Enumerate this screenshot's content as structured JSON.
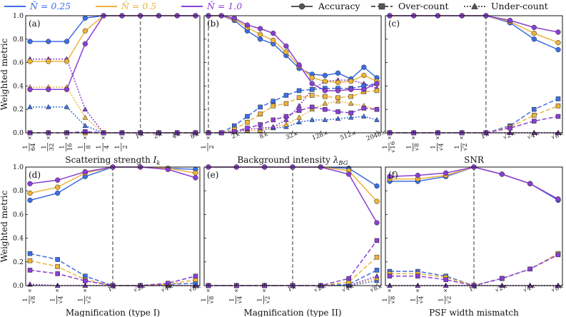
{
  "colors": {
    "n025": "#3d6ee6",
    "n05": "#edb33a",
    "n10": "#8a3fd3",
    "ref": "#707070"
  },
  "legend": {
    "series": [
      {
        "label": "N̄ = 0.25",
        "color": "#3d6ee6"
      },
      {
        "label": "N̄ = 0.5",
        "color": "#edb33a"
      },
      {
        "label": "N̄ = 1.0",
        "color": "#8a3fd3"
      }
    ],
    "metrics": [
      {
        "label": "Accuracy",
        "marker": "circle",
        "dash": "solid"
      },
      {
        "label": "Over-count",
        "marker": "square",
        "dash": "dashed"
      },
      {
        "label": "Under-count",
        "marker": "triangle",
        "dash": "dotted"
      }
    ]
  },
  "ylabel": "Weighted metric",
  "chart_data": [
    {
      "type": "line",
      "panel": "(a)",
      "xlabel": "Scattering strength I_k",
      "ylim": [
        0,
        1
      ],
      "yticks": [
        "0.0",
        "0.2",
        "0.4",
        "0.6",
        "0.8",
        "1.0"
      ],
      "xticks": [
        "1/64×",
        "1/32×",
        "1/16×",
        "1/8×",
        "1/4×",
        "1/2×",
        "1×",
        "2×",
        "4×",
        "8×"
      ],
      "reference_x": "1×",
      "accuracy": [
        [
          0.78,
          0.78,
          0.78,
          0.98,
          1,
          1,
          1,
          1,
          1,
          1
        ],
        [
          0.61,
          0.61,
          0.61,
          0.87,
          1,
          1,
          1,
          1,
          1,
          1
        ],
        [
          0.37,
          0.37,
          0.37,
          0.76,
          1,
          1,
          1,
          1,
          1,
          1
        ]
      ],
      "overcount": [
        [
          0,
          0,
          0,
          0,
          0,
          0,
          0,
          0,
          0,
          0
        ],
        [
          0,
          0,
          0,
          0,
          0,
          0,
          0,
          0,
          0,
          0
        ],
        [
          0,
          0,
          0,
          0.01,
          0,
          0,
          0,
          0,
          0,
          0
        ]
      ],
      "undercount": [
        [
          0.22,
          0.22,
          0.22,
          0.06,
          0,
          0,
          0,
          0,
          0,
          0
        ],
        [
          0.39,
          0.39,
          0.39,
          0.13,
          0,
          0,
          0,
          0,
          0,
          0
        ],
        [
          0.63,
          0.63,
          0.63,
          0.2,
          0,
          0,
          0,
          0,
          0,
          0
        ]
      ]
    },
    {
      "type": "line",
      "panel": "(b)",
      "xlabel": "Background intensity λ_BG",
      "ylim": [
        0,
        1
      ],
      "yticks": [
        "0.0",
        "0.2",
        "0.4",
        "0.6",
        "0.8",
        "1.0"
      ],
      "xticks": [
        "1/2×",
        "2×",
        "8×",
        "32×",
        "128×",
        "512×",
        "2048×"
      ],
      "reference_x": "1/2×",
      "accuracy": [
        [
          1,
          1,
          0.96,
          0.87,
          0.8,
          0.76,
          0.66,
          0.55,
          0.5,
          0.49,
          0.51,
          0.46,
          0.56,
          0.47
        ],
        [
          1,
          1,
          0.97,
          0.9,
          0.84,
          0.79,
          0.69,
          0.57,
          0.47,
          0.44,
          0.43,
          0.44,
          0.49,
          0.44
        ],
        [
          1,
          1,
          0.98,
          0.92,
          0.89,
          0.85,
          0.74,
          0.58,
          0.42,
          0.36,
          0.36,
          0.37,
          0.37,
          0.42
        ]
      ],
      "overcount": [
        [
          0,
          0,
          0.06,
          0.14,
          0.22,
          0.27,
          0.32,
          0.36,
          0.37,
          0.38,
          0.38,
          0.38,
          0.4,
          0.42
        ],
        [
          0,
          0,
          0.03,
          0.09,
          0.16,
          0.23,
          0.25,
          0.3,
          0.32,
          0.31,
          0.3,
          0.31,
          0.35,
          0.36
        ],
        [
          0,
          0,
          0.01,
          0.04,
          0.07,
          0.11,
          0.14,
          0.19,
          0.22,
          0.2,
          0.18,
          0.17,
          0.21,
          0.2
        ]
      ],
      "undercount": [
        [
          0,
          0,
          0.01,
          0.02,
          0.02,
          0.04,
          0.05,
          0.09,
          0.11,
          0.11,
          0.12,
          0.13,
          0.14,
          0.11
        ],
        [
          0,
          0,
          0.01,
          0.02,
          0.02,
          0.05,
          0.07,
          0.13,
          0.2,
          0.25,
          0.27,
          0.25,
          0.23,
          0.2
        ],
        [
          0,
          0,
          0.01,
          0.03,
          0.04,
          0.05,
          0.11,
          0.23,
          0.37,
          0.44,
          0.45,
          0.45,
          0.42,
          0.38
        ]
      ]
    },
    {
      "type": "line",
      "panel": "(c)",
      "xlabel": "SNR",
      "ylim": [
        0,
        1
      ],
      "yticks": [
        "0.0",
        "0.2",
        "0.4",
        "0.6",
        "0.8",
        "1.0"
      ],
      "xticks": [
        "1/√16×",
        "1/√8×",
        "1/√4×",
        "1/√2×",
        "1×",
        "√2×",
        "√4×",
        "√8×"
      ],
      "reference_x": "1×",
      "accuracy": [
        [
          1,
          1,
          1,
          1,
          1,
          0.94,
          0.8,
          0.71
        ],
        [
          1,
          1,
          1,
          1,
          1,
          0.95,
          0.85,
          0.77
        ],
        [
          1,
          1,
          1,
          1,
          1,
          0.96,
          0.9,
          0.86
        ]
      ],
      "overcount": [
        [
          0,
          0,
          0,
          0,
          0,
          0.06,
          0.2,
          0.29
        ],
        [
          0,
          0,
          0,
          0,
          0,
          0.05,
          0.15,
          0.23
        ],
        [
          0,
          0,
          0,
          0,
          0,
          0.04,
          0.1,
          0.14
        ]
      ],
      "undercount": [
        [
          0,
          0,
          0,
          0,
          0,
          0,
          0,
          0
        ],
        [
          0,
          0,
          0,
          0,
          0,
          0,
          0,
          0
        ],
        [
          0,
          0,
          0,
          0,
          0,
          0,
          0,
          0
        ]
      ]
    },
    {
      "type": "line",
      "panel": "(d)",
      "xlabel": "Magnification (type I)",
      "ylim": [
        0,
        1
      ],
      "yticks": [
        "0.0",
        "0.2",
        "0.4",
        "0.6",
        "0.8",
        "1.0"
      ],
      "xticks": [
        "1/√8×",
        "1/√4×",
        "1/√2×",
        "1×",
        "√2×",
        "√4×",
        "√8×"
      ],
      "reference_x": "1×",
      "accuracy": [
        [
          0.72,
          0.78,
          0.92,
          1,
          1,
          0.99,
          0.98
        ],
        [
          0.78,
          0.83,
          0.95,
          1,
          1,
          0.99,
          0.95
        ],
        [
          0.86,
          0.89,
          0.96,
          1,
          1,
          0.98,
          0.91
        ]
      ],
      "overcount": [
        [
          0.27,
          0.22,
          0.08,
          0,
          0,
          0.01,
          0.02
        ],
        [
          0.21,
          0.16,
          0.05,
          0,
          0,
          0.01,
          0.05
        ],
        [
          0.13,
          0.1,
          0.04,
          0,
          0,
          0.02,
          0.08
        ]
      ],
      "undercount": [
        [
          0.01,
          0,
          0,
          0,
          0,
          0,
          0
        ],
        [
          0.01,
          0,
          0,
          0,
          0,
          0,
          0
        ],
        [
          0.01,
          0,
          0,
          0,
          0,
          0,
          0
        ]
      ]
    },
    {
      "type": "line",
      "panel": "(e)",
      "xlabel": "Magnification (type II)",
      "ylim": [
        0,
        1
      ],
      "yticks": [
        "0.0",
        "0.2",
        "0.4",
        "0.6",
        "0.8",
        "1.0"
      ],
      "xticks": [
        "1/√8×",
        "1/√4×",
        "1/√2×",
        "1×",
        "√2×",
        "√4×",
        "√8×"
      ],
      "reference_x": "1×",
      "accuracy": [
        [
          1,
          1,
          1,
          1,
          1,
          0.99,
          0.84
        ],
        [
          1,
          1,
          1,
          1,
          1,
          0.97,
          0.71
        ],
        [
          1,
          1,
          1,
          1,
          1,
          0.94,
          0.53
        ]
      ],
      "overcount": [
        [
          0,
          0,
          0,
          0,
          0,
          0.01,
          0.13
        ],
        [
          0,
          0,
          0,
          0,
          0,
          0.03,
          0.24
        ],
        [
          0,
          0,
          0,
          0,
          0,
          0.06,
          0.38
        ]
      ],
      "undercount": [
        [
          0,
          0,
          0,
          0,
          0,
          0,
          0.04
        ],
        [
          0,
          0,
          0,
          0,
          0,
          0,
          0.06
        ],
        [
          0,
          0,
          0,
          0,
          0,
          0,
          0.08
        ]
      ]
    },
    {
      "type": "line",
      "panel": "(f)",
      "xlabel": "PSF width mismatch",
      "ylim": [
        0,
        1
      ],
      "yticks": [
        "0.0",
        "0.2",
        "0.4",
        "0.6",
        "0.8",
        "1.0"
      ],
      "xticks": [
        "1/√8×",
        "1/√4×",
        "1/√2×",
        "1×",
        "√2×",
        "√4×",
        "√8×"
      ],
      "reference_x": "1×",
      "accuracy": [
        [
          0.88,
          0.88,
          0.92,
          1,
          0.94,
          0.86,
          0.72
        ],
        [
          0.9,
          0.9,
          0.93,
          1,
          0.94,
          0.86,
          0.73
        ],
        [
          0.92,
          0.93,
          0.95,
          1,
          0.94,
          0.86,
          0.73
        ]
      ],
      "overcount": [
        [
          0.12,
          0.12,
          0.08,
          0,
          0.06,
          0.14,
          0.27
        ],
        [
          0.1,
          0.1,
          0.07,
          0,
          0.06,
          0.14,
          0.27
        ],
        [
          0.08,
          0.08,
          0.05,
          0,
          0.06,
          0.14,
          0.26
        ]
      ],
      "undercount": [
        [
          0,
          0,
          0,
          0,
          0,
          0,
          0
        ],
        [
          0,
          0,
          0,
          0,
          0,
          0,
          0
        ],
        [
          0,
          0,
          0,
          0,
          0,
          0,
          0
        ]
      ]
    }
  ]
}
